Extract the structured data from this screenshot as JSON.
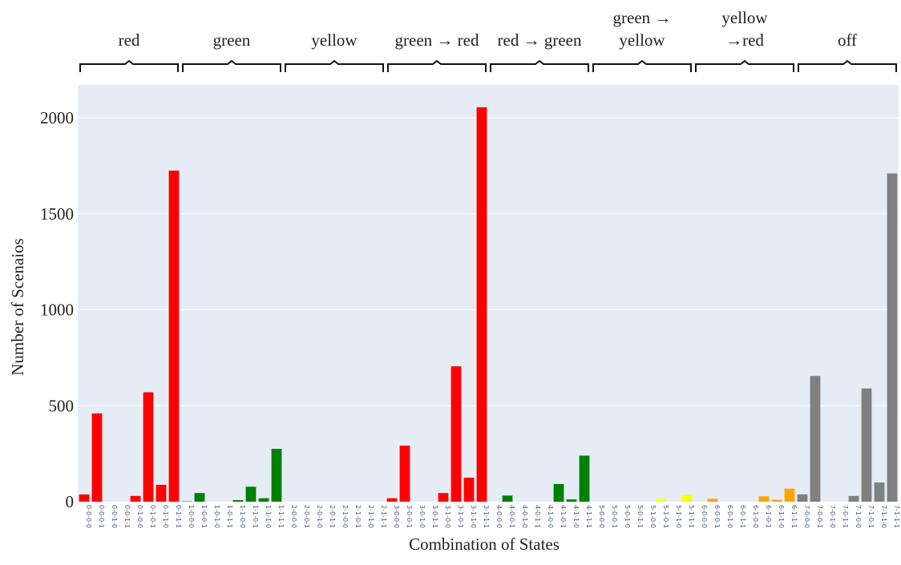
{
  "chart_data": {
    "type": "bar",
    "xlabel": "Combination of States",
    "ylabel": "Number of Scenaios",
    "ylim": [
      0,
      2200
    ],
    "yticks": [
      0,
      500,
      1000,
      1500,
      2000
    ],
    "grid": true,
    "background": "#e5ecf6",
    "categories": [
      "0-0-0-0",
      "0-0-0-1",
      "0-0-1-0",
      "0-0-1-1",
      "0-1-0-0",
      "0-1-0-1",
      "0-1-1-0",
      "0-1-1-1",
      "1-0-0-0",
      "1-0-0-1",
      "1-0-1-0",
      "1-0-1-1",
      "1-1-0-0",
      "1-1-0-1",
      "1-1-1-0",
      "1-1-1-1",
      "2-0-0-0",
      "2-0-0-1",
      "2-0-1-0",
      "2-0-1-1",
      "2-1-0-0",
      "2-1-0-1",
      "2-1-1-0",
      "2-1-1-1",
      "3-0-0-0",
      "3-0-0-1",
      "3-0-1-0",
      "3-0-1-1",
      "3-1-0-0",
      "3-1-0-1",
      "3-1-1-0",
      "3-1-1-1",
      "4-0-0-0",
      "4-0-0-1",
      "4-0-1-0",
      "4-0-1-1",
      "4-1-0-0",
      "4-1-0-1",
      "4-1-1-0",
      "4-1-1-1",
      "5-0-0-0",
      "5-0-0-1",
      "5-0-1-0",
      "5-0-1-1",
      "5-1-0-0",
      "5-1-0-1",
      "5-1-1-0",
      "5-1-1-1",
      "6-0-0-0",
      "6-0-0-1",
      "6-0-1-0",
      "6-0-1-1",
      "6-1-0-0",
      "6-1-0-1",
      "6-1-1-0",
      "6-1-1-1",
      "7-0-0-0",
      "7-0-0-1",
      "7-0-1-0",
      "7-0-1-1",
      "7-1-0-0",
      "7-1-0-1",
      "7-1-1-0",
      "7-1-1-1"
    ],
    "values": [
      38,
      460,
      0,
      0,
      30,
      570,
      88,
      1725,
      2,
      45,
      0,
      0,
      8,
      78,
      18,
      275,
      0,
      0,
      0,
      0,
      0,
      0,
      0,
      0,
      18,
      292,
      0,
      0,
      45,
      705,
      125,
      2055,
      0,
      32,
      0,
      0,
      0,
      92,
      12,
      240,
      0,
      0,
      0,
      0,
      0,
      15,
      0,
      35,
      0,
      15,
      0,
      0,
      0,
      28,
      10,
      68,
      38,
      655,
      0,
      0,
      30,
      590,
      100,
      1710
    ],
    "groups": [
      {
        "label": "red",
        "color": "#ff0000"
      },
      {
        "label": "green",
        "color": "#008000"
      },
      {
        "label": "yellow",
        "color": "#ffff00"
      },
      {
        "label": "green → red",
        "color": "#ff0000"
      },
      {
        "label": "red → green",
        "color": "#008000"
      },
      {
        "label": "green →\nyellow",
        "color": "#ffff00"
      },
      {
        "label": "yellow\n→red",
        "color": "#ffa500"
      },
      {
        "label": "off",
        "color": "#808080"
      }
    ]
  }
}
